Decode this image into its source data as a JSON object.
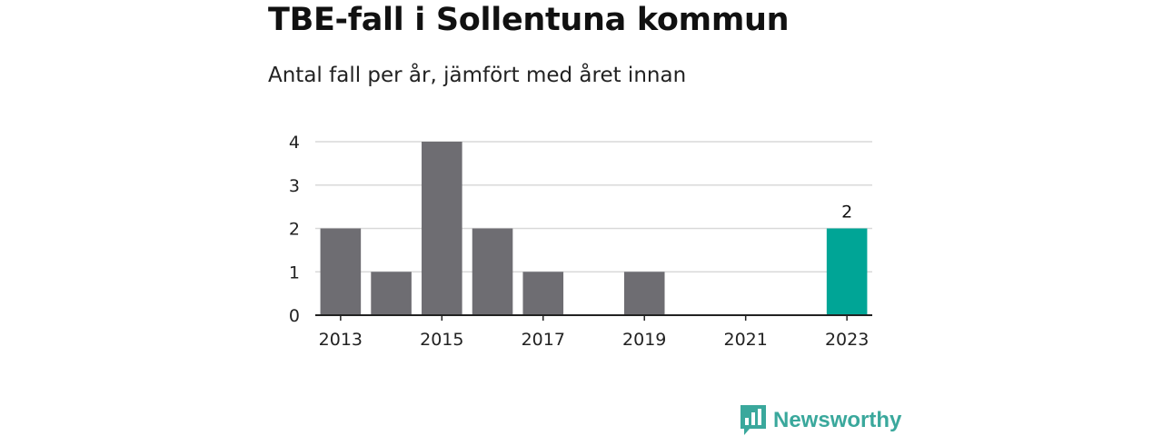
{
  "chart_data": {
    "type": "bar",
    "title": "TBE-fall i Sollentuna kommun",
    "subtitle": "Antal fall per år, jämfört med året innan",
    "x": [
      2013,
      2014,
      2015,
      2016,
      2017,
      2018,
      2019,
      2020,
      2021,
      2022,
      2023
    ],
    "values": [
      2,
      1,
      4,
      2,
      1,
      0,
      1,
      0,
      0,
      0,
      2
    ],
    "x_tick_labels": [
      "2013",
      "2015",
      "2017",
      "2019",
      "2021",
      "2023"
    ],
    "y_ticks": [
      0,
      1,
      2,
      3,
      4
    ],
    "ylim": [
      0,
      4
    ],
    "grid": true,
    "highlight": {
      "year": 2023,
      "label": "2"
    },
    "colors": {
      "bar": "#6e6d72",
      "highlight": "#00a596",
      "grid": "#d9d9d9",
      "axis": "#222222"
    }
  },
  "branding": {
    "name": "Newsworthy",
    "logo_icon": "bar-chart-icon",
    "color": "#3aa89c"
  }
}
